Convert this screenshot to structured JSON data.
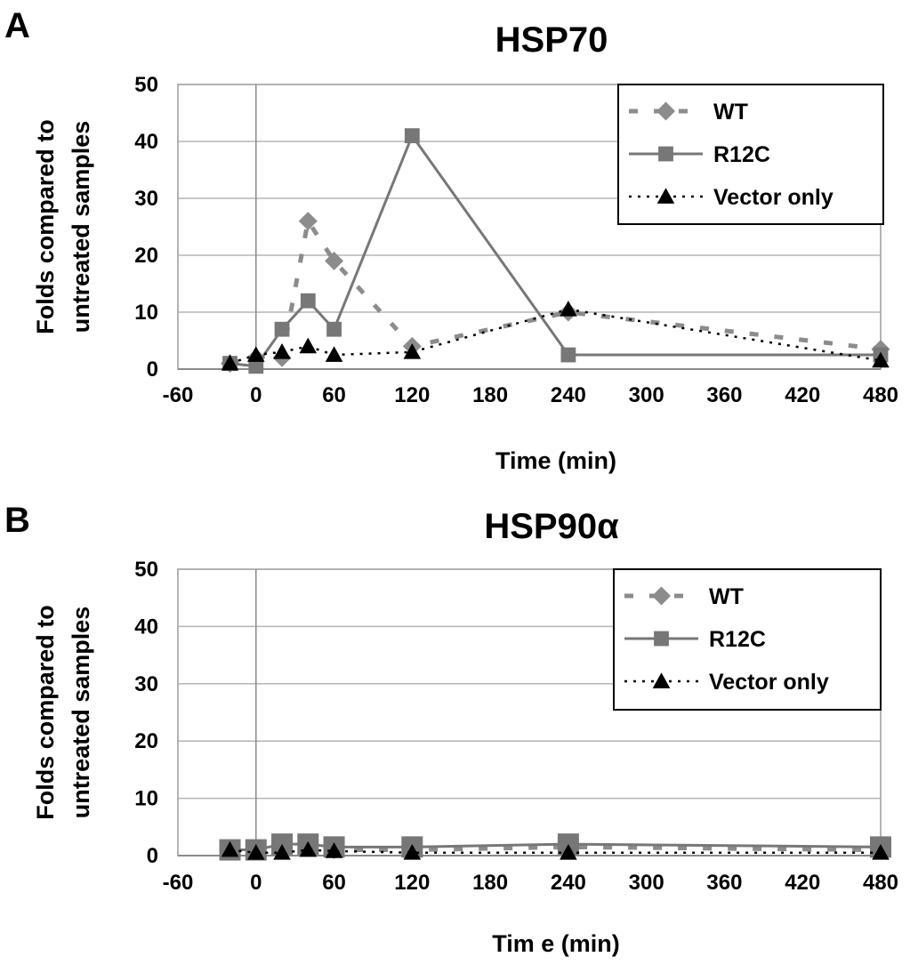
{
  "chart_data": [
    {
      "panel": "A",
      "type": "line",
      "title": "HSP70",
      "xlabel": "Time (min)",
      "ylabel": [
        "Folds compared to",
        "untreated samples"
      ],
      "xlim": [
        -60,
        480
      ],
      "ylim": [
        0,
        50
      ],
      "x_ticks": [
        -60,
        0,
        60,
        120,
        180,
        240,
        300,
        360,
        420,
        480
      ],
      "y_ticks": [
        0,
        10,
        20,
        30,
        40,
        50
      ],
      "grid": "horizontal",
      "legend_position": "top-right",
      "series": [
        {
          "name": "WT",
          "color": "#8c8c8c",
          "marker": "diamond",
          "line": "dashed",
          "x": [
            -20,
            0,
            20,
            40,
            60,
            120,
            240,
            480
          ],
          "y": [
            1,
            2,
            2,
            26,
            19,
            4,
            10,
            3.5
          ]
        },
        {
          "name": "R12C",
          "color": "#777777",
          "marker": "square",
          "line": "solid",
          "x": [
            -20,
            0,
            20,
            40,
            60,
            120,
            240,
            480
          ],
          "y": [
            1,
            0.5,
            7,
            12,
            7,
            41,
            2.5,
            2.5
          ]
        },
        {
          "name": "Vector only",
          "color": "#000000",
          "marker": "triangle",
          "line": "dotted",
          "x": [
            -20,
            0,
            20,
            40,
            60,
            120,
            240,
            480
          ],
          "y": [
            1,
            2.5,
            3,
            4,
            2.5,
            3,
            10.5,
            1.5
          ]
        }
      ]
    },
    {
      "panel": "B",
      "type": "line",
      "title": "HSP90α",
      "xlabel": "Tim e (min)",
      "ylabel": [
        "Folds compared to",
        "untreated samples"
      ],
      "xlim": [
        -60,
        480
      ],
      "ylim": [
        0,
        50
      ],
      "x_ticks": [
        -60,
        0,
        60,
        120,
        180,
        240,
        300,
        360,
        420,
        480
      ],
      "y_ticks": [
        0,
        10,
        20,
        30,
        40,
        50
      ],
      "grid": "horizontal",
      "legend_position": "top-right",
      "series": [
        {
          "name": "WT",
          "color": "#8c8c8c",
          "marker": "diamond",
          "line": "dashed",
          "x": [
            -20,
            0,
            20,
            40,
            60,
            120,
            240,
            480
          ],
          "y": [
            1,
            1,
            1.5,
            1.5,
            1,
            1,
            1.5,
            1
          ]
        },
        {
          "name": "R12C",
          "color": "#777777",
          "marker": "square",
          "line": "solid",
          "x": [
            -20,
            0,
            20,
            40,
            60,
            120,
            240,
            480
          ],
          "y": [
            1,
            1,
            2,
            2,
            1.5,
            1.5,
            2,
            1.5
          ]
        },
        {
          "name": "Vector only",
          "color": "#000000",
          "marker": "triangle",
          "line": "dotted",
          "x": [
            -20,
            0,
            20,
            40,
            60,
            120,
            240,
            480
          ],
          "y": [
            1,
            0.5,
            0.5,
            1,
            0.8,
            0.5,
            0.5,
            0.5
          ]
        }
      ]
    }
  ]
}
